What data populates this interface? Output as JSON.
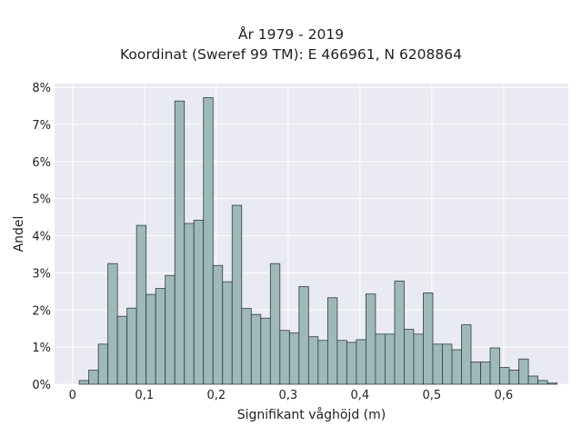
{
  "chart_data": {
    "type": "bar",
    "title": "År 1979 - 2019",
    "subtitle": "Koordinat (Sweref 99 TM): E 466961, N 6208864",
    "xlabel": "Signifikant våghöjd (m)",
    "ylabel": "Andel",
    "xlim": [
      -0.025,
      0.69
    ],
    "ylim": [
      0,
      8.1
    ],
    "x_ticks": [
      0,
      0.1,
      0.2,
      0.3,
      0.4,
      0.5,
      0.6
    ],
    "x_tick_labels": [
      "0",
      "0,1",
      "0,2",
      "0,3",
      "0,4",
      "0,5",
      "0,6"
    ],
    "y_ticks": [
      0,
      1,
      2,
      3,
      4,
      5,
      6,
      7,
      8
    ],
    "y_tick_labels": [
      "0%",
      "1%",
      "2%",
      "3%",
      "4%",
      "5%",
      "6%",
      "7%",
      "8%"
    ],
    "y_unit": "percent",
    "grid": true,
    "background": "#eaeaf2",
    "bar_color": "#9fb8b8",
    "bar_edge_color": "#2f3f3f",
    "bin_width": 0.0133,
    "bin_start": 0.0093,
    "values": [
      0.1,
      0.38,
      1.08,
      3.25,
      1.83,
      2.05,
      4.28,
      2.42,
      2.58,
      2.93,
      7.63,
      4.33,
      4.42,
      7.72,
      3.2,
      2.76,
      4.82,
      2.04,
      1.88,
      1.78,
      3.25,
      1.45,
      1.38,
      2.63,
      1.28,
      1.18,
      2.33,
      1.18,
      1.13,
      1.2,
      2.43,
      1.35,
      1.35,
      2.78,
      1.48,
      1.35,
      2.46,
      1.08,
      1.08,
      0.93,
      1.6,
      0.6,
      0.6,
      0.98,
      0.45,
      0.38,
      0.68,
      0.22,
      0.1,
      0.03
    ]
  }
}
